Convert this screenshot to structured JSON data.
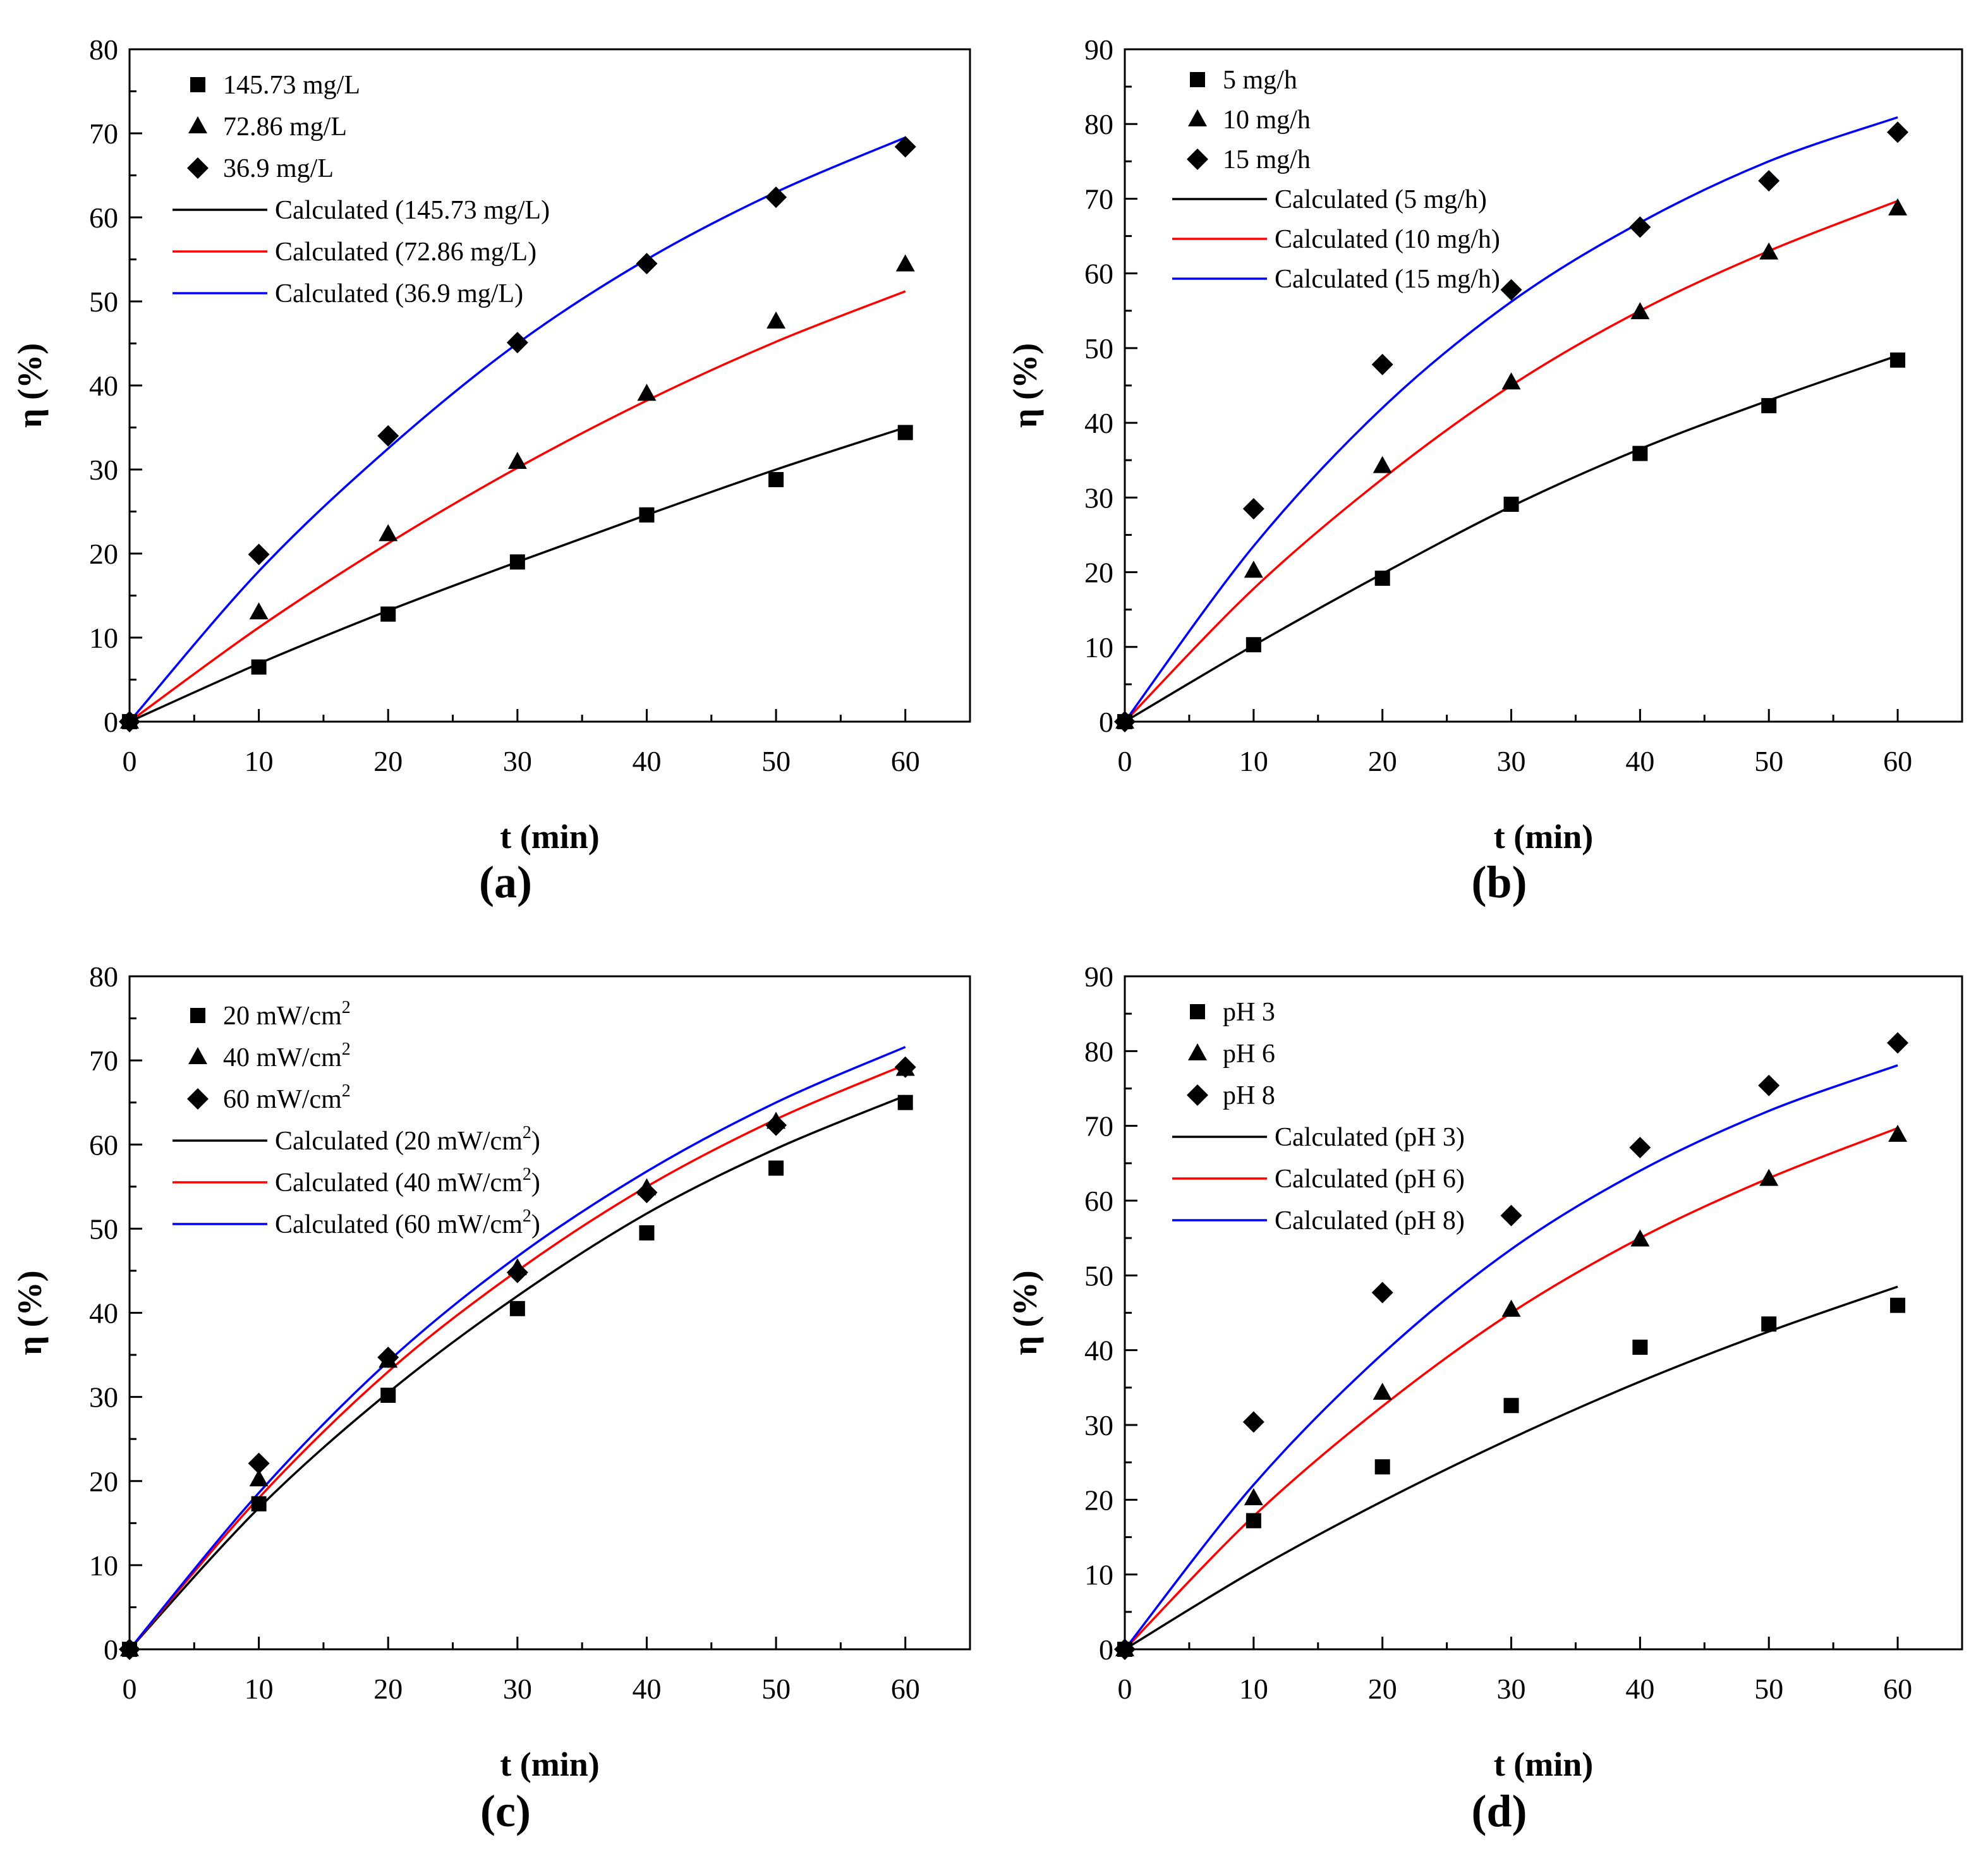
{
  "chart_data": [
    {
      "type": "scatter",
      "panel": "(a)",
      "xlabel": "t (min)",
      "ylabel": "η (%)",
      "xlim": [
        0,
        65
      ],
      "ylim": [
        0,
        80
      ],
      "xticks": [
        0,
        10,
        20,
        30,
        40,
        50,
        60
      ],
      "yticks": [
        0,
        10,
        20,
        30,
        40,
        50,
        60,
        70,
        80
      ],
      "legend_position": "top-left",
      "x": [
        0,
        10,
        20,
        30,
        40,
        50,
        60
      ],
      "series": [
        {
          "name": "145.73 mg/L",
          "marker": "square",
          "values": [
            0,
            6.5,
            12.8,
            19.0,
            24.6,
            28.8,
            34.4
          ]
        },
        {
          "name": "72.86 mg/L",
          "marker": "triangle",
          "values": [
            0,
            13.0,
            22.3,
            30.9,
            39.0,
            47.6,
            54.4
          ]
        },
        {
          "name": "36.9 mg/L",
          "marker": "diamond",
          "values": [
            0,
            19.9,
            34.0,
            45.1,
            54.5,
            62.4,
            68.4
          ]
        }
      ],
      "fits": [
        {
          "name": "Calculated (145.73 mg/L)",
          "color": "#000000",
          "values": [
            0,
            6.9,
            13.2,
            19.0,
            24.6,
            30.0,
            35.0
          ]
        },
        {
          "name": "Calculated (72.86 mg/L)",
          "color": "#ff0000",
          "values": [
            0,
            11.2,
            21.2,
            30.2,
            38.2,
            45.2,
            51.2
          ]
        },
        {
          "name": "Calculated (36.9 mg/L)",
          "color": "#0000ff",
          "values": [
            0,
            17.9,
            32.5,
            45.0,
            55.0,
            63.0,
            69.5
          ]
        }
      ]
    },
    {
      "type": "scatter",
      "panel": "(b)",
      "xlabel": "t (min)",
      "ylabel": "η (%)",
      "xlim": [
        0,
        65
      ],
      "ylim": [
        0,
        90
      ],
      "xticks": [
        0,
        10,
        20,
        30,
        40,
        50,
        60
      ],
      "yticks": [
        0,
        10,
        20,
        30,
        40,
        50,
        60,
        70,
        80,
        90
      ],
      "legend_position": "top-left",
      "x": [
        0,
        10,
        20,
        30,
        40,
        50,
        60
      ],
      "series": [
        {
          "name": "5 mg/h",
          "marker": "square",
          "values": [
            0,
            10.3,
            19.2,
            29.1,
            35.9,
            42.3,
            48.4
          ]
        },
        {
          "name": "10 mg/h",
          "marker": "triangle",
          "values": [
            0,
            20.2,
            34.2,
            45.4,
            54.8,
            62.8,
            68.7
          ]
        },
        {
          "name": "15 mg/h",
          "marker": "diamond",
          "values": [
            0,
            28.5,
            47.8,
            57.8,
            66.2,
            72.4,
            78.9
          ]
        }
      ],
      "fits": [
        {
          "name": "Calculated (5 mg/h)",
          "color": "#000000",
          "values": [
            0,
            10.2,
            19.8,
            28.8,
            36.5,
            43.0,
            49.0
          ]
        },
        {
          "name": "Calculated (10 mg/h)",
          "color": "#ff0000",
          "values": [
            0,
            17.8,
            32.5,
            45.0,
            55.0,
            63.0,
            69.7
          ]
        },
        {
          "name": "Calculated (15 mg/h)",
          "color": "#0000ff",
          "values": [
            0,
            23.5,
            42.0,
            56.2,
            66.8,
            75.0,
            80.9
          ]
        }
      ]
    },
    {
      "type": "scatter",
      "panel": "(c)",
      "xlabel": "t (min)",
      "ylabel": "η (%)",
      "xlim": [
        0,
        65
      ],
      "ylim": [
        0,
        80
      ],
      "xticks": [
        0,
        10,
        20,
        30,
        40,
        50,
        60
      ],
      "yticks": [
        0,
        10,
        20,
        30,
        40,
        50,
        60,
        70,
        80
      ],
      "legend_position": "top-left",
      "x": [
        0,
        10,
        20,
        30,
        40,
        50,
        60
      ],
      "series": [
        {
          "name": "20 mW/cm",
          "sup": "2",
          "marker": "square",
          "values": [
            0,
            17.3,
            30.2,
            40.5,
            49.5,
            57.2,
            65.0
          ]
        },
        {
          "name": "40 mW/cm",
          "sup": "2",
          "marker": "triangle",
          "values": [
            0,
            20.2,
            34.3,
            45.3,
            54.8,
            62.7,
            69.0
          ]
        },
        {
          "name": "60 mW/cm",
          "sup": "2",
          "marker": "diamond",
          "values": [
            0,
            22.1,
            34.7,
            44.8,
            54.3,
            62.3,
            69.2
          ]
        }
      ],
      "fits": [
        {
          "name": "Calculated (20 mW/cm",
          "sup": "2",
          "suffix": ")",
          "color": "#000000",
          "values": [
            0,
            16.8,
            30.5,
            42.0,
            51.8,
            59.5,
            65.8
          ]
        },
        {
          "name": "Calculated (40 mW/cm",
          "sup": "2",
          "suffix": ")",
          "color": "#ff0000",
          "values": [
            0,
            18.0,
            33.0,
            45.0,
            55.0,
            63.0,
            69.5
          ]
        },
        {
          "name": "Calculated (60 mW/cm",
          "sup": "2",
          "suffix": ")",
          "color": "#0000ff",
          "values": [
            0,
            18.6,
            34.2,
            46.7,
            56.8,
            65.0,
            71.6
          ]
        }
      ]
    },
    {
      "type": "scatter",
      "panel": "(d)",
      "xlabel": "t (min)",
      "ylabel": "η (%)",
      "xlim": [
        0,
        65
      ],
      "ylim": [
        0,
        90
      ],
      "xticks": [
        0,
        10,
        20,
        30,
        40,
        50,
        60
      ],
      "yticks": [
        0,
        10,
        20,
        30,
        40,
        50,
        60,
        70,
        80,
        90
      ],
      "legend_position": "top-left",
      "x": [
        0,
        10,
        20,
        30,
        40,
        50,
        60
      ],
      "series": [
        {
          "name": "pH 3",
          "marker": "square",
          "values": [
            0,
            17.2,
            24.4,
            32.6,
            40.4,
            43.5,
            46.0
          ]
        },
        {
          "name": "pH 6",
          "marker": "triangle",
          "values": [
            0,
            20.2,
            34.3,
            45.4,
            54.8,
            62.9,
            68.8
          ]
        },
        {
          "name": "pH 8",
          "marker": "diamond",
          "values": [
            0,
            30.4,
            47.7,
            58.0,
            67.1,
            75.4,
            81.1
          ]
        }
      ],
      "fits": [
        {
          "name": "Calculated (pH 3)",
          "color": "#000000",
          "values": [
            0,
            10.5,
            19.8,
            28.2,
            35.8,
            42.5,
            48.5
          ]
        },
        {
          "name": "Calculated (pH 6)",
          "color": "#ff0000",
          "values": [
            0,
            17.8,
            32.5,
            45.0,
            55.0,
            63.0,
            69.7
          ]
        },
        {
          "name": "Calculated (pH 8)",
          "color": "#0000ff",
          "values": [
            0,
            22.0,
            39.5,
            53.5,
            64.0,
            72.0,
            78.1
          ]
        }
      ]
    }
  ]
}
